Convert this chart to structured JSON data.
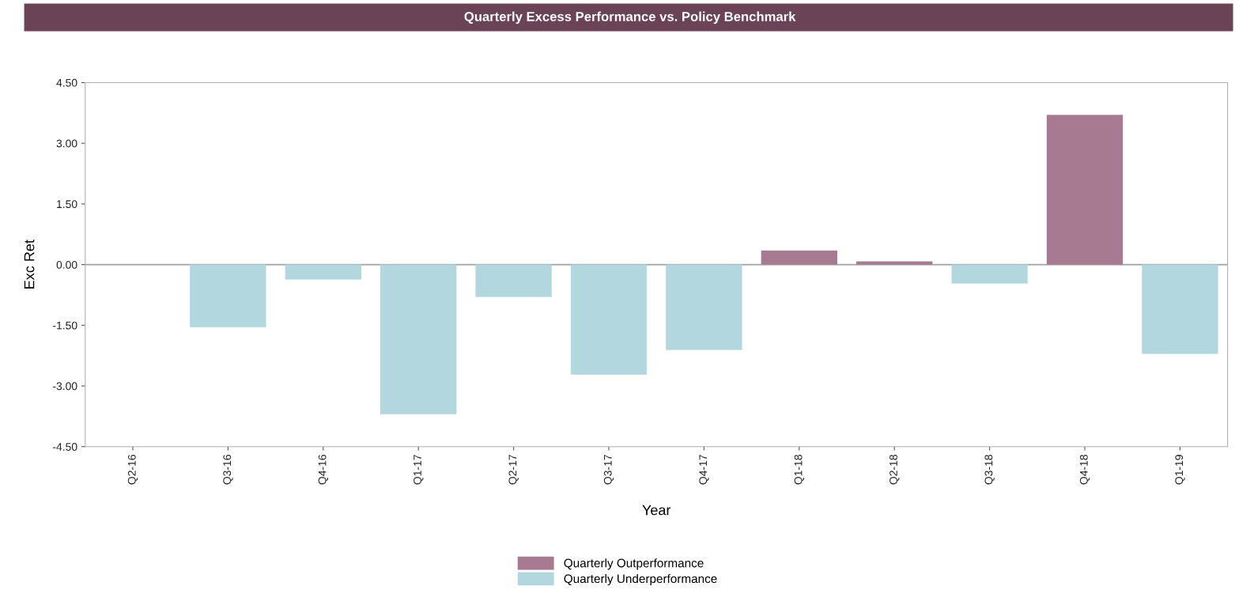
{
  "chart_data": {
    "type": "bar",
    "title": "Quarterly Excess Performance vs. Policy Benchmark",
    "xlabel": "Year",
    "ylabel": "Exc Ret",
    "categories": [
      "Q2-16",
      "Q3-16",
      "Q4-16",
      "Q1-17",
      "Q2-17",
      "Q3-17",
      "Q4-17",
      "Q1-18",
      "Q2-18",
      "Q3-18",
      "Q4-18",
      "Q1-19"
    ],
    "series": [
      {
        "name": "Quarterly Outperformance",
        "color": "#a87a91",
        "values": [
          null,
          null,
          null,
          null,
          null,
          null,
          null,
          0.35,
          0.08,
          null,
          3.7,
          null
        ]
      },
      {
        "name": "Quarterly Underperformance",
        "color": "#b3d7de",
        "values": [
          null,
          -1.55,
          -0.37,
          -3.7,
          -0.8,
          -2.72,
          -2.11,
          null,
          null,
          -0.47,
          null,
          -2.21
        ]
      }
    ],
    "ylim": [
      -4.5,
      4.5
    ],
    "yticks": [
      {
        "value": -4.5,
        "label": "-4.50"
      },
      {
        "value": -3,
        "label": "-3.00"
      },
      {
        "value": -1.5,
        "label": "-1.50"
      },
      {
        "value": 0,
        "label": "0.00"
      },
      {
        "value": 1.5,
        "label": "1.50"
      },
      {
        "value": 3,
        "label": "3.00"
      },
      {
        "value": 4.5,
        "label": "4.50"
      }
    ],
    "ref_lines": [
      {
        "axis": "y",
        "value": 0,
        "label": null,
        "color": "#a0a0a0"
      }
    ],
    "grid": false,
    "legend": "bottom"
  }
}
